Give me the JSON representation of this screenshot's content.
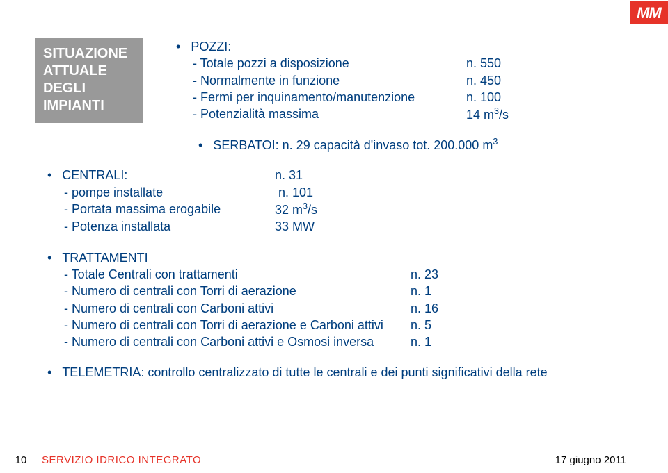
{
  "colors": {
    "text_primary": "#003e7e",
    "title_box_bg": "#999999",
    "title_box_text": "#ffffff",
    "accent_red": "#e63329",
    "body_bg": "#ffffff",
    "footer_text": "#000000"
  },
  "title_box": {
    "line1": "SITUAZIONE",
    "line2": "ATTUALE",
    "line3": "DEGLI",
    "line4": "IMPIANTI"
  },
  "pozzi": {
    "header": "POZZI:",
    "rows": [
      {
        "label": "-  Totale pozzi a disposizione",
        "value": "n. 550"
      },
      {
        "label": "-  Normalmente in  funzione",
        "value": "n. 450"
      },
      {
        "label": "-  Fermi per inquinamento/manutenzione",
        "value": "n. 100"
      },
      {
        "label": "-  Potenzialità massima",
        "value_html": "14 m<sup>3</sup>/s"
      }
    ]
  },
  "serbatoi_html": "SERBATOI: n. 29  capacità d'invaso tot.  200.000  m<sup>3</sup>",
  "centrali": {
    "rows": [
      {
        "label_html": "•&nbsp;&nbsp;&nbsp;CENTRALI:",
        "dot": true,
        "value": "n. 31"
      },
      {
        "label": "-  pompe installate",
        "value": "n. 101"
      },
      {
        "label": "-  Portata massima erogabile",
        "value_html": "32  m<sup>3</sup>/s"
      },
      {
        "label": "-  Potenza installata",
        "value": "33 MW"
      }
    ]
  },
  "trattamenti": {
    "header": "TRATTAMENTI",
    "rows": [
      {
        "label": "-  Totale Centrali con trattamenti",
        "value": "n. 23"
      },
      {
        "label": "-  Numero di centrali con Torri di aerazione",
        "value": "n. 1"
      },
      {
        "label": "-  Numero di centrali con Carboni attivi",
        "value": "n. 16"
      },
      {
        "label": "-  Numero di centrali con Torri di aerazione e Carboni attivi",
        "value": "n. 5"
      },
      {
        "label": "-  Numero di centrali con Carboni attivi e Osmosi inversa",
        "value": " n. 1"
      }
    ]
  },
  "telemetria": "TELEMETRIA: controllo centralizzato di tutte le centrali e dei punti significativi della rete",
  "footer": {
    "page_number": "10",
    "title": "SERVIZIO IDRICO INTEGRATO",
    "date": "17  giugno 2011"
  },
  "logo_text": "MM"
}
